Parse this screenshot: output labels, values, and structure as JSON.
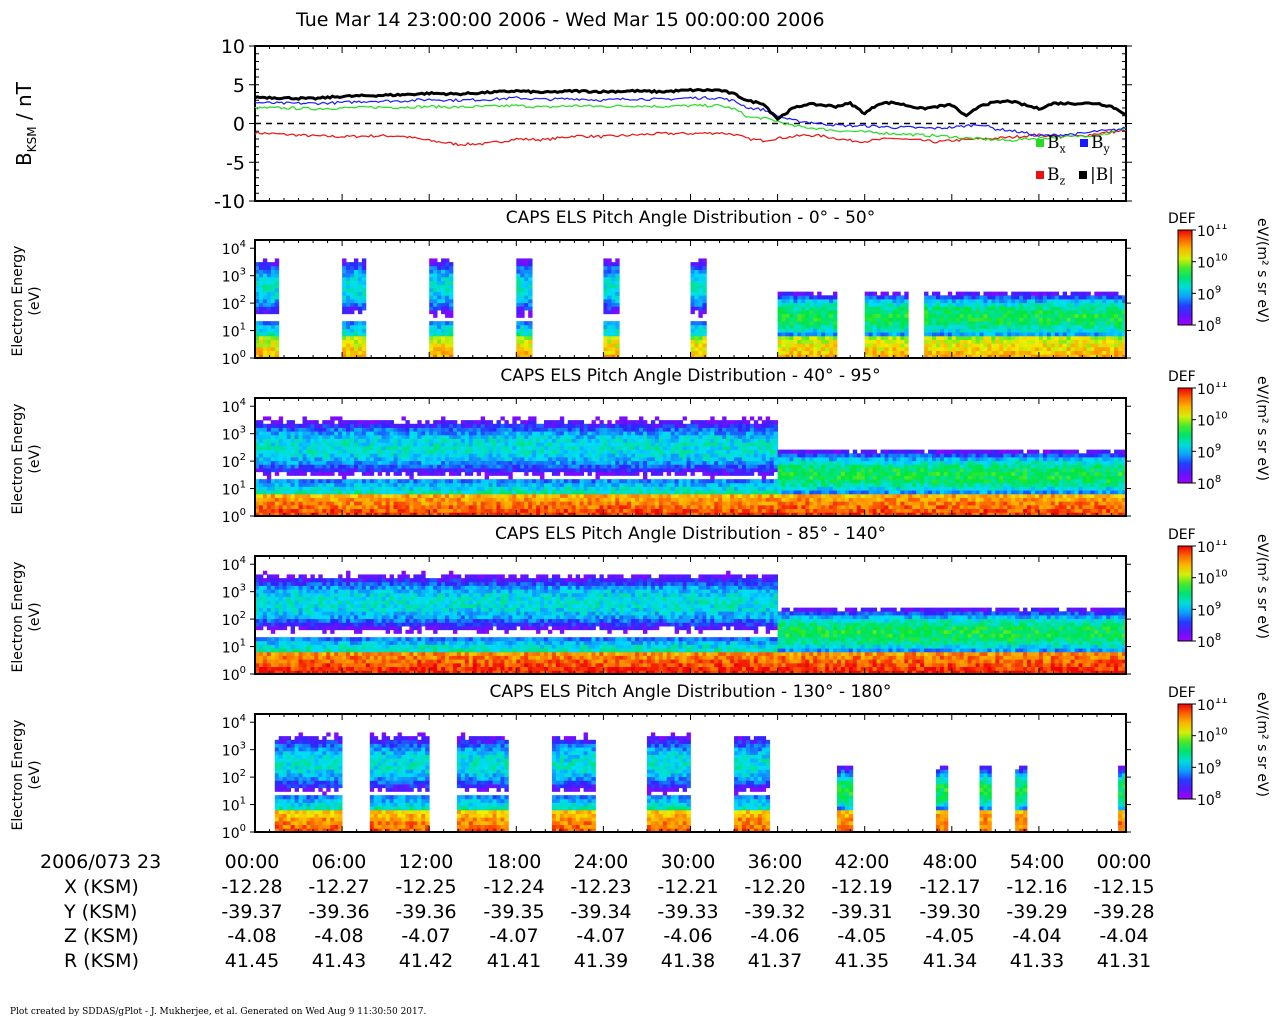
{
  "header": {
    "title": "Tue Mar 14 23:00:00 2006 - Wed Mar 15 00:00:00 2006"
  },
  "colors": {
    "bx": "#22dd22",
    "by": "#1a1aff",
    "bz": "#ee1111",
    "btot": "#000000"
  },
  "chart_data": [
    {
      "type": "line",
      "ylabel": "B",
      "ylabel_sub": "KSM",
      "ylabel_unit": "/ nT",
      "ylim": [
        -10,
        10
      ],
      "yticks": [
        "10",
        "5",
        "0",
        "-5",
        "-10"
      ],
      "zero_line": "dashed",
      "legend_position": "bottom-right",
      "x_minutes": [
        0,
        2,
        4,
        6,
        8,
        10,
        12,
        14,
        16,
        18,
        20,
        22,
        24,
        26,
        28,
        30,
        32,
        33,
        34,
        35,
        36,
        37,
        38,
        39,
        40,
        41,
        42,
        43,
        44,
        45,
        46,
        47,
        48,
        49,
        50,
        51,
        52,
        53,
        54,
        55,
        56,
        57,
        58,
        59,
        60
      ],
      "series": [
        {
          "name": "B",
          "sub": "x",
          "color": "#22dd22",
          "values": [
            2.0,
            2.0,
            1.9,
            2.0,
            2.1,
            2.1,
            2.2,
            2.1,
            2.2,
            2.3,
            2.1,
            2.3,
            2.2,
            2.3,
            2.2,
            2.3,
            2.3,
            1.9,
            0.8,
            0.7,
            0.3,
            -0.3,
            -0.5,
            -0.7,
            -0.9,
            -1.0,
            -1.1,
            -1.2,
            -1.3,
            -1.4,
            -1.5,
            -1.6,
            -1.7,
            -1.9,
            -2.0,
            -2.1,
            -2.2,
            -2.0,
            -1.9,
            -1.8,
            -1.7,
            -1.6,
            -1.5,
            -1.2,
            -0.5
          ]
        },
        {
          "name": "B",
          "sub": "y",
          "color": "#1a1aff",
          "values": [
            2.7,
            2.6,
            2.6,
            2.7,
            2.9,
            2.9,
            3.1,
            3.0,
            3.1,
            3.3,
            3.1,
            3.2,
            3.0,
            3.2,
            3.1,
            3.3,
            3.3,
            2.9,
            2.0,
            1.8,
            1.0,
            0.4,
            0.2,
            0.0,
            -0.2,
            -0.3,
            -0.3,
            -0.4,
            -0.5,
            -0.5,
            -0.6,
            -0.6,
            -0.5,
            -0.3,
            -0.1,
            -0.7,
            -0.9,
            -1.2,
            -1.6,
            -1.5,
            -1.4,
            -1.3,
            -1.0,
            -0.9,
            -0.6
          ]
        },
        {
          "name": "B",
          "sub": "z",
          "color": "#ee1111",
          "values": [
            -1.2,
            -1.4,
            -1.6,
            -1.7,
            -1.6,
            -1.6,
            -2.2,
            -2.7,
            -2.6,
            -2.0,
            -2.1,
            -1.6,
            -1.7,
            -1.5,
            -1.3,
            -1.3,
            -1.2,
            -1.4,
            -2.0,
            -2.2,
            -1.9,
            -1.7,
            -1.5,
            -1.6,
            -1.9,
            -2.2,
            -2.3,
            -2.1,
            -1.9,
            -2.1,
            -2.2,
            -2.4,
            -2.2,
            -2.1,
            -2.0,
            -1.9,
            -1.8,
            -1.6,
            -1.5,
            -1.6,
            -1.7,
            -1.6,
            -1.3,
            -1.1,
            -0.9
          ]
        },
        {
          "name": "|B|",
          "sub": "",
          "color": "#000000",
          "values": [
            3.4,
            3.3,
            3.2,
            3.5,
            3.6,
            3.7,
            3.9,
            3.8,
            4.0,
            4.2,
            4.0,
            4.2,
            4.1,
            4.2,
            4.1,
            4.3,
            4.3,
            3.8,
            2.9,
            2.6,
            0.6,
            1.9,
            2.5,
            2.4,
            2.2,
            2.6,
            1.3,
            2.6,
            2.7,
            2.3,
            1.9,
            2.2,
            2.4,
            0.9,
            2.4,
            2.7,
            2.9,
            2.4,
            1.9,
            2.6,
            2.6,
            2.6,
            2.6,
            2.2,
            1.2
          ]
        }
      ]
    },
    {
      "type": "heatmap",
      "title": "CAPS ELS Pitch Angle Distribution - 0° - 50°",
      "ylabel": "Electron Energy",
      "yunit": "(eV)",
      "ylim_exp": [
        0,
        4.3
      ],
      "yticks": [
        "10",
        "10",
        "10",
        "10",
        "10"
      ],
      "ytick_exps": [
        "0",
        "1",
        "2",
        "3",
        "4"
      ],
      "colorbar": {
        "label": "DEF",
        "unit": "eV/(m² s sr eV)",
        "ticks_base": [
          "10",
          "10",
          "10",
          "10"
        ],
        "ticks_exp": [
          "11",
          "10",
          "9",
          "8"
        ],
        "range_exp": [
          8,
          11
        ]
      },
      "blocks_minutes": [
        [
          0,
          1.5
        ],
        [
          6,
          7.5
        ],
        [
          12,
          13.5
        ],
        [
          18,
          19
        ],
        [
          24,
          25
        ],
        [
          30,
          31
        ],
        [
          36,
          40
        ],
        [
          42,
          45
        ],
        [
          46,
          60
        ]
      ],
      "peak_energy_exp": 2.6,
      "low_energy_def_exp": 10.0
    },
    {
      "type": "heatmap",
      "title": "CAPS ELS Pitch Angle Distribution - 40° - 95°",
      "ylabel": "Electron Energy",
      "yunit": "(eV)",
      "ylim_exp": [
        0,
        4.3
      ],
      "yticks": [
        "10",
        "10",
        "10",
        "10",
        "10"
      ],
      "ytick_exps": [
        "0",
        "1",
        "2",
        "3",
        "4"
      ],
      "colorbar": {
        "label": "DEF",
        "unit": "eV/(m² s sr eV)",
        "ticks_base": [
          "10",
          "10",
          "10",
          "10"
        ],
        "ticks_exp": [
          "11",
          "10",
          "9",
          "8"
        ],
        "range_exp": [
          8,
          11
        ]
      },
      "blocks_minutes": [
        [
          0,
          60
        ]
      ],
      "peak_energy_exp": 2.5,
      "low_energy_def_exp": 10.4
    },
    {
      "type": "heatmap",
      "title": "CAPS ELS Pitch Angle Distribution - 85° - 140°",
      "ylabel": "Electron Energy",
      "yunit": "(eV)",
      "ylim_exp": [
        0,
        4.3
      ],
      "yticks": [
        "10",
        "10",
        "10",
        "10",
        "10"
      ],
      "ytick_exps": [
        "0",
        "1",
        "2",
        "3",
        "4"
      ],
      "colorbar": {
        "label": "DEF",
        "unit": "eV/(m² s sr eV)",
        "ticks_base": [
          "10",
          "10",
          "10",
          "10"
        ],
        "ticks_exp": [
          "11",
          "10",
          "9",
          "8"
        ],
        "range_exp": [
          8,
          11
        ]
      },
      "blocks_minutes": [
        [
          0,
          60
        ]
      ],
      "peak_energy_exp": 2.6,
      "low_energy_def_exp": 10.5
    },
    {
      "type": "heatmap",
      "title": "CAPS ELS Pitch Angle Distribution - 130° - 180°",
      "ylabel": "Electron Energy",
      "yunit": "(eV)",
      "ylim_exp": [
        0,
        4.3
      ],
      "yticks": [
        "10",
        "10",
        "10",
        "10",
        "10"
      ],
      "ytick_exps": [
        "0",
        "1",
        "2",
        "3",
        "4"
      ],
      "colorbar": {
        "label": "DEF",
        "unit": "eV/(m² s sr eV)",
        "ticks_base": [
          "10",
          "10",
          "10",
          "10"
        ],
        "ticks_exp": [
          "11",
          "10",
          "9",
          "8"
        ],
        "range_exp": [
          8,
          11
        ]
      },
      "blocks_minutes": [
        [
          1.5,
          6
        ],
        [
          8,
          12
        ],
        [
          14,
          17.5
        ],
        [
          20.5,
          23.5
        ],
        [
          27,
          30
        ],
        [
          33,
          35.5
        ],
        [
          40,
          41.3
        ],
        [
          47,
          47.7
        ],
        [
          50,
          50.8
        ],
        [
          52.5,
          53.3
        ],
        [
          59.5,
          60
        ]
      ],
      "peak_energy_exp": 2.5,
      "low_energy_def_exp": 10.3
    }
  ],
  "ephemeris": {
    "date_label": "2006/073 23",
    "times": [
      "00:00",
      "06:00",
      "12:00",
      "18:00",
      "24:00",
      "30:00",
      "36:00",
      "42:00",
      "48:00",
      "54:00",
      "00:00"
    ],
    "rows": [
      {
        "label": "X (KSM)",
        "values": [
          "-12.28",
          "-12.27",
          "-12.25",
          "-12.24",
          "-12.23",
          "-12.21",
          "-12.20",
          "-12.19",
          "-12.17",
          "-12.16",
          "-12.15"
        ]
      },
      {
        "label": "Y (KSM)",
        "values": [
          "-39.37",
          "-39.36",
          "-39.36",
          "-39.35",
          "-39.34",
          "-39.33",
          "-39.32",
          "-39.31",
          "-39.30",
          "-39.29",
          "-39.28"
        ]
      },
      {
        "label": "Z (KSM)",
        "values": [
          "-4.08",
          "-4.08",
          "-4.07",
          "-4.07",
          "-4.07",
          "-4.06",
          "-4.06",
          "-4.05",
          "-4.05",
          "-4.04",
          "-4.04"
        ]
      },
      {
        "label": "R (KSM)",
        "values": [
          "41.45",
          "41.43",
          "41.42",
          "41.41",
          "41.39",
          "41.38",
          "41.37",
          "41.35",
          "41.34",
          "41.33",
          "41.31"
        ]
      }
    ]
  },
  "footer": {
    "text": "Plot created by SDDAS/gPlot - J. Mukherjee, et al.  Generated on Wed Aug 9 11:30:50 2017."
  }
}
